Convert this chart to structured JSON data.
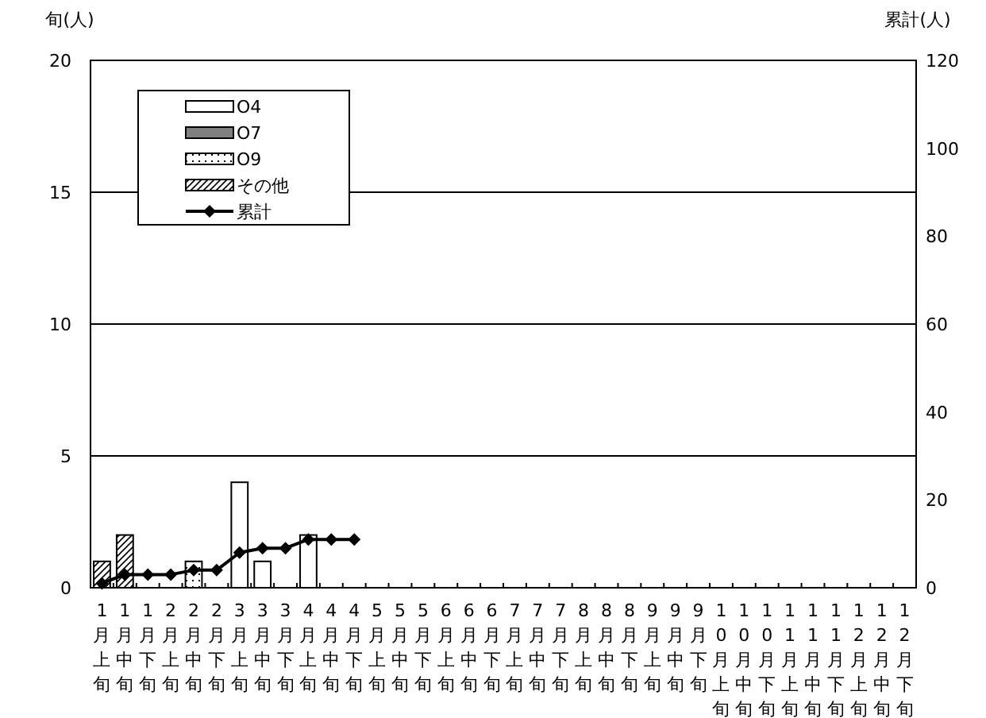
{
  "chart_data": {
    "type": "bar",
    "ylabel": "旬(人)",
    "y2label": "累計(人)",
    "categories": [
      "1月上旬",
      "1月中旬",
      "1月下旬",
      "2月上旬",
      "2月中旬",
      "2月下旬",
      "3月上旬",
      "3月中旬",
      "3月下旬",
      "4月上旬",
      "4月中旬",
      "4月下旬",
      "5月上旬",
      "5月中旬",
      "5月下旬",
      "6月上旬",
      "6月中旬",
      "6月下旬",
      "7月上旬",
      "7月中旬",
      "7月下旬",
      "8月上旬",
      "8月中旬",
      "8月下旬",
      "9月上旬",
      "9月中旬",
      "9月下旬",
      "10月上旬",
      "10月中旬",
      "10月下旬",
      "11月上旬",
      "11月中旬",
      "11月下旬",
      "12月上旬",
      "12月中旬",
      "12月下旬"
    ],
    "series": [
      {
        "name": "O4",
        "color": "#ffffff",
        "values": [
          0,
          0,
          0,
          0,
          0,
          0,
          4,
          1,
          0,
          2,
          0,
          0,
          null,
          null,
          null,
          null,
          null,
          null,
          null,
          null,
          null,
          null,
          null,
          null,
          null,
          null,
          null,
          null,
          null,
          null,
          null,
          null,
          null,
          null,
          null,
          null
        ]
      },
      {
        "name": "O7",
        "color": "#808080",
        "values": [
          0,
          0,
          0,
          0,
          0,
          0,
          0,
          0,
          0,
          0,
          0,
          0,
          null,
          null,
          null,
          null,
          null,
          null,
          null,
          null,
          null,
          null,
          null,
          null,
          null,
          null,
          null,
          null,
          null,
          null,
          null,
          null,
          null,
          null,
          null,
          null
        ]
      },
      {
        "name": "O9",
        "color": "#000000",
        "values": [
          0,
          0,
          0,
          0,
          1,
          0,
          0,
          0,
          0,
          0,
          0,
          0,
          null,
          null,
          null,
          null,
          null,
          null,
          null,
          null,
          null,
          null,
          null,
          null,
          null,
          null,
          null,
          null,
          null,
          null,
          null,
          null,
          null,
          null,
          null,
          null
        ]
      },
      {
        "name": "その他",
        "color": "#000000",
        "values": [
          1,
          2,
          0,
          0,
          0,
          0,
          0,
          0,
          0,
          0,
          0,
          0,
          null,
          null,
          null,
          null,
          null,
          null,
          null,
          null,
          null,
          null,
          null,
          null,
          null,
          null,
          null,
          null,
          null,
          null,
          null,
          null,
          null,
          null,
          null,
          null
        ]
      },
      {
        "name": "累計",
        "type": "line",
        "axis": "y2",
        "color": "#000000",
        "marker": "diamond",
        "values": [
          1,
          3,
          3,
          3,
          4,
          4,
          8,
          9,
          9,
          11,
          11,
          11,
          null,
          null,
          null,
          null,
          null,
          null,
          null,
          null,
          null,
          null,
          null,
          null,
          null,
          null,
          null,
          null,
          null,
          null,
          null,
          null,
          null,
          null,
          null,
          null
        ]
      }
    ],
    "ylim": [
      0,
      20
    ],
    "yticks": [
      0,
      5,
      10,
      15,
      20
    ],
    "y2lim": [
      0,
      120
    ],
    "y2ticks": [
      0,
      20,
      40,
      60,
      80,
      100,
      120
    ],
    "grid": "y",
    "legend": "top left"
  }
}
